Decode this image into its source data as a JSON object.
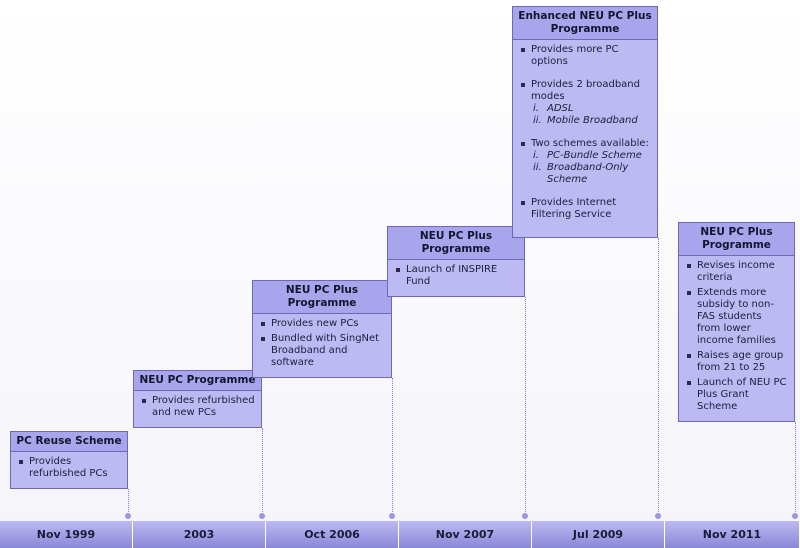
{
  "timeline": [
    {
      "date": "Nov 1999",
      "title": "PC Reuse Scheme",
      "items": [
        {
          "text": "Provides refurbished PCs"
        }
      ]
    },
    {
      "date": "2003",
      "title": "NEU PC Programme",
      "items": [
        {
          "text": "Provides refurbished and new PCs"
        }
      ]
    },
    {
      "date": "Oct 2006",
      "title": "NEU PC Plus Programme",
      "items": [
        {
          "text": "Provides new PCs"
        },
        {
          "text": "Bundled with SingNet Broadband and software"
        }
      ]
    },
    {
      "date": "Nov 2007",
      "title": "NEU PC Plus Programme",
      "items": [
        {
          "text": "Launch of INSPIRE Fund"
        }
      ]
    },
    {
      "date": "Jul 2009",
      "title": "Enhanced NEU PC Plus Programme",
      "items": [
        {
          "text": "Provides more PC options"
        },
        {
          "text": "Provides 2 broadband modes",
          "sub": [
            {
              "marker": "i.",
              "text": "ADSL"
            },
            {
              "marker": "ii.",
              "text": "Mobile Broadband"
            }
          ]
        },
        {
          "text": "Two schemes available:",
          "sub": [
            {
              "marker": "i.",
              "text": "PC-Bundle Scheme"
            },
            {
              "marker": "ii.",
              "text": "Broadband-Only Scheme"
            }
          ]
        },
        {
          "text": "Provides Internet Filtering Service"
        }
      ]
    },
    {
      "date": "Nov 2011",
      "title": "NEU PC Plus Programme",
      "items": [
        {
          "text": "Revises income criteria"
        },
        {
          "text": "Extends more subsidy to non-FAS students from lower income families"
        },
        {
          "text": "Raises age group from 21 to 25"
        },
        {
          "text": "Launch of NEU PC Plus Grant Scheme"
        }
      ]
    }
  ]
}
